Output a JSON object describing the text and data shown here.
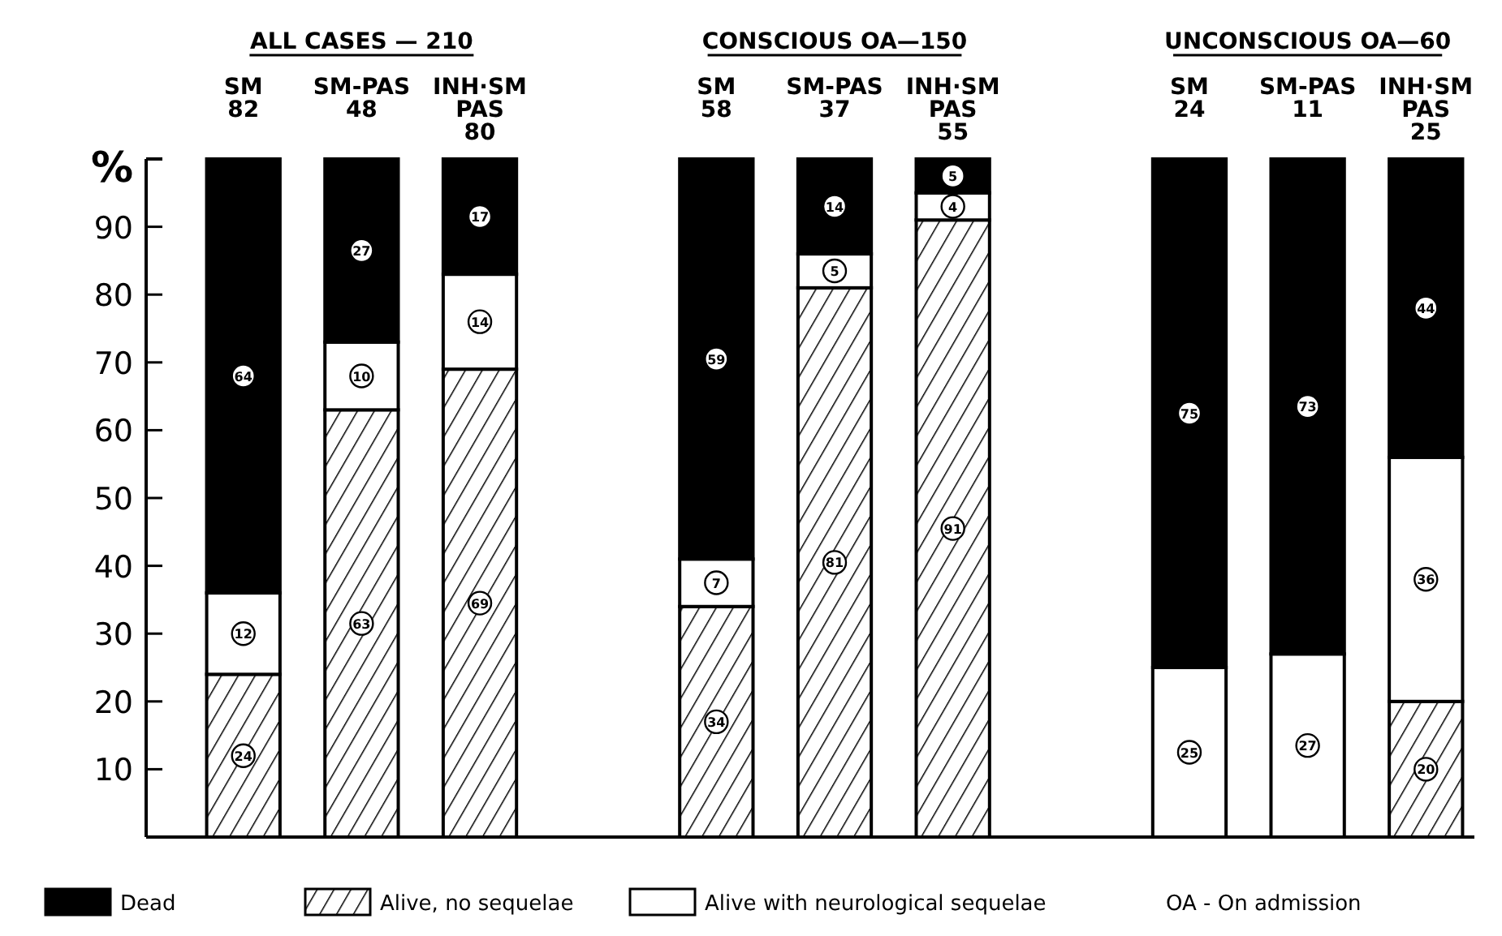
{
  "chart_data": {
    "type": "bar",
    "stacked": true,
    "ylabel": "%",
    "categories": [
      "SM\n82",
      "SM-PAS\n48",
      "INH·SM\nPAS\n80",
      null,
      "SM\n58",
      "SM-PAS\n37",
      "INH·SM\nPAS\n55",
      null,
      "SM\n24",
      "SM-PAS\n11",
      "INH·SM\nPAS\n25"
    ],
    "series": [
      {
        "name": "Alive, no sequelae",
        "color": "#000000",
        "values": [
          24,
          63,
          69,
          null,
          34,
          81,
          91,
          null,
          null,
          null,
          20
        ]
      },
      {
        "name": "Alive with neurological sequelae",
        "color": "#ffffff",
        "values": [
          12,
          10,
          14,
          null,
          7,
          5,
          4,
          null,
          25,
          27,
          36
        ]
      },
      {
        "name": "Dead",
        "color": "#000000",
        "values": [
          64,
          27,
          17,
          null,
          59,
          14,
          5,
          null,
          75,
          73,
          44
        ]
      }
    ],
    "ylim": [
      0,
      100
    ],
    "yticks": [
      10,
      20,
      30,
      40,
      50,
      60,
      70,
      80,
      90
    ],
    "grid": false,
    "legend": "bottom",
    "data_labels": true,
    "annotations": [
      "ALL CASES — 210",
      "CONSCIOUS  OA—150",
      "UNCONSCIOUS  OA—60",
      "OA - On admission"
    ]
  }
}
